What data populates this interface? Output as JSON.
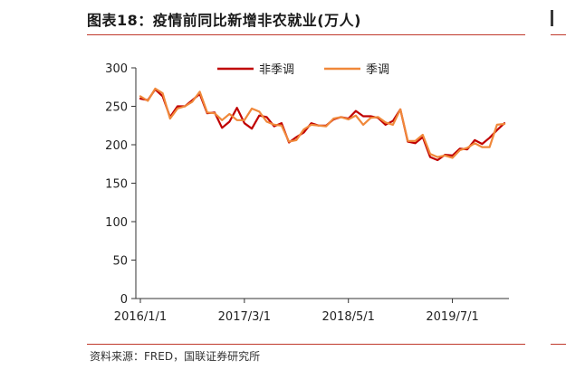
{
  "header": {
    "title": "图表18：疫情前同比新增非农就业(万人)"
  },
  "footer": {
    "source": "资料来源：FRED，国联证券研究所"
  },
  "colors": {
    "series_nsa": "#c00000",
    "series_sa": "#f0883a",
    "rule": "#c0392b"
  },
  "chart_data": {
    "type": "line",
    "title": "疫情前同比新增非农就业(万人)",
    "xlabel": "",
    "ylabel": "",
    "ylim": [
      0,
      300
    ],
    "yticks": [
      0,
      50,
      100,
      150,
      200,
      250,
      300
    ],
    "xticks": [
      "2016/1/1",
      "2017/3/1",
      "2018/5/1",
      "2019/7/1"
    ],
    "x_range": [
      "2016/1/1",
      "2020/2/1"
    ],
    "grid": false,
    "legend": "top-center",
    "x": [
      "2016-01",
      "2016-02",
      "2016-03",
      "2016-04",
      "2016-05",
      "2016-06",
      "2016-07",
      "2016-08",
      "2016-09",
      "2016-10",
      "2016-11",
      "2016-12",
      "2017-01",
      "2017-02",
      "2017-03",
      "2017-04",
      "2017-05",
      "2017-06",
      "2017-07",
      "2017-08",
      "2017-09",
      "2017-10",
      "2017-11",
      "2017-12",
      "2018-01",
      "2018-02",
      "2018-03",
      "2018-04",
      "2018-05",
      "2018-06",
      "2018-07",
      "2018-08",
      "2018-09",
      "2018-10",
      "2018-11",
      "2018-12",
      "2019-01",
      "2019-02",
      "2019-03",
      "2019-04",
      "2019-05",
      "2019-06",
      "2019-07",
      "2019-08",
      "2019-09",
      "2019-10",
      "2019-11",
      "2019-12",
      "2020-01",
      "2020-02"
    ],
    "series": [
      {
        "name": "非季调",
        "values": [
          260,
          258,
          272,
          263,
          236,
          250,
          250,
          258,
          266,
          241,
          242,
          222,
          230,
          248,
          228,
          221,
          238,
          236,
          224,
          228,
          203,
          210,
          216,
          228,
          225,
          225,
          233,
          236,
          234,
          244,
          237,
          237,
          235,
          226,
          231,
          246,
          204,
          202,
          210,
          184,
          180,
          187,
          186,
          195,
          194,
          206,
          201,
          209,
          219,
          228
        ]
      },
      {
        "name": "季调",
        "values": [
          263,
          257,
          273,
          267,
          234,
          247,
          250,
          256,
          269,
          242,
          241,
          232,
          240,
          232,
          232,
          247,
          243,
          230,
          226,
          225,
          204,
          206,
          220,
          226,
          225,
          224,
          234,
          236,
          233,
          238,
          226,
          235,
          236,
          229,
          226,
          246,
          205,
          205,
          213,
          188,
          184,
          186,
          183,
          193,
          196,
          202,
          197,
          197,
          226,
          227
        ]
      }
    ]
  }
}
